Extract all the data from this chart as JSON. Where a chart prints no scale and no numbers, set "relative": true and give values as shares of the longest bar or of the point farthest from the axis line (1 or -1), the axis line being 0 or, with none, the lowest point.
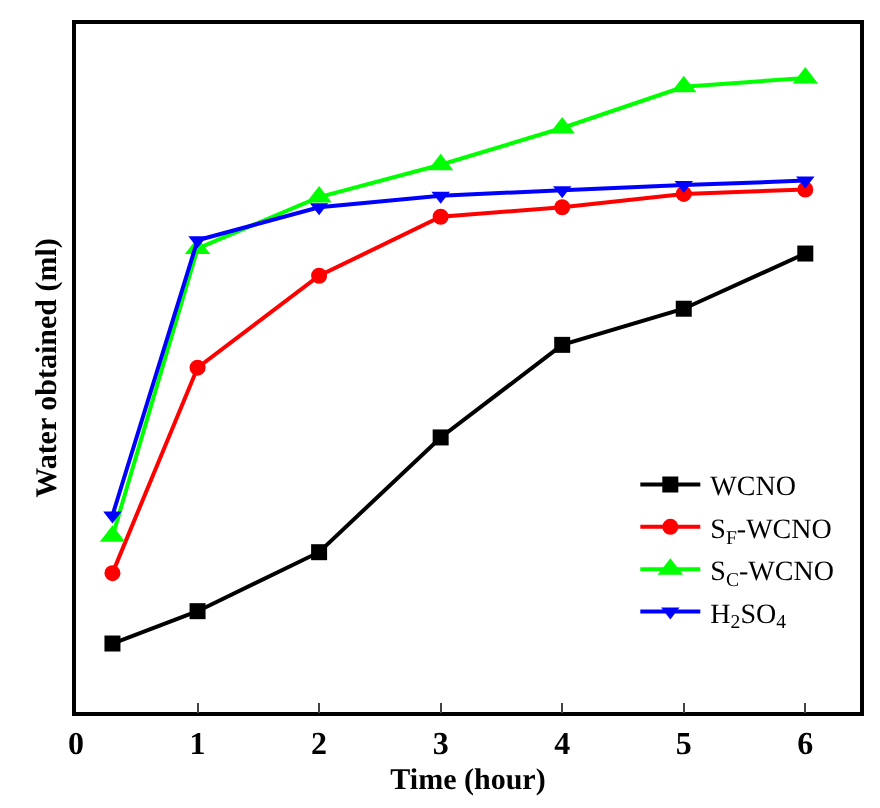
{
  "chart_data": {
    "type": "line",
    "xlabel": "Time (hour)",
    "ylabel": "Water obtained (ml)",
    "relative": true,
    "x": [
      0.3,
      1,
      2,
      3,
      4,
      5,
      6
    ],
    "xlim": [
      0,
      6.45
    ],
    "xticks": [
      0,
      1,
      2,
      3,
      4,
      5,
      6
    ],
    "legend": "bottom right",
    "line_style": "solid",
    "series": [
      {
        "name": "WCNO",
        "color": "#000000",
        "marker": "square",
        "values": [
          0.108,
          0.159,
          0.252,
          0.433,
          0.579,
          0.636,
          0.723
        ]
      },
      {
        "name": "S$_{F}$-WCNO",
        "color": "#ff0000",
        "marker": "circle",
        "values": [
          0.219,
          0.543,
          0.688,
          0.781,
          0.796,
          0.817,
          0.824
        ]
      },
      {
        "name": "S$_{C}$-WCNO",
        "color": "#00ff00",
        "marker": "triangle",
        "values": [
          0.277,
          0.731,
          0.812,
          0.863,
          0.921,
          0.986,
          1
        ]
      },
      {
        "name": "H$_{2}$SO$_{4}$",
        "color": "#0000ff",
        "marker": "triangle-down",
        "values": [
          0.31,
          0.744,
          0.796,
          0.814,
          0.823,
          0.831,
          0.838
        ]
      }
    ]
  }
}
